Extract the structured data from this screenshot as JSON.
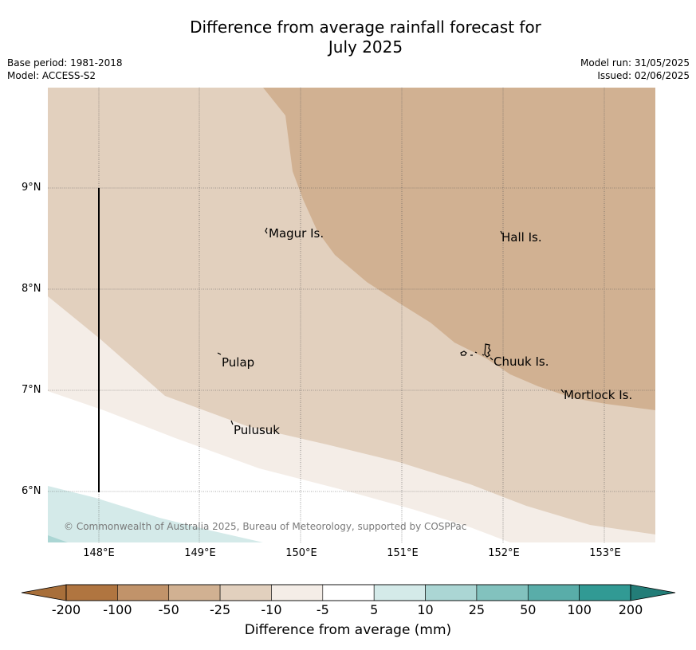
{
  "title_line1": "Difference from average rainfall forecast for",
  "title_line2": "July 2025",
  "base_period": "Base period: 1981-2018",
  "model": "Model: ACCESS-S2",
  "model_run": "Model run: 31/05/2025",
  "issued": "Issued: 02/06/2025",
  "lat_labels": [
    "9°N",
    "8°N",
    "7°N",
    "6°N"
  ],
  "lon_labels": [
    "148°E",
    "149°E",
    "150°E",
    "151°E",
    "152°E",
    "153°E"
  ],
  "places": {
    "magur": "Magur Is.",
    "hall": "Hall Is.",
    "pulap": "Pulap",
    "chuuk": "Chuuk Is.",
    "mortlock": "Mortlock Is.",
    "pulusuk": "Pulusuk"
  },
  "copyright": "© Commonwealth of Australia 2025, Bureau of Meteorology, supported by COSPPac",
  "colorbar": {
    "title": "Difference from average (mm)",
    "ticks": [
      "-200",
      "-100",
      "-50",
      "-25",
      "-10",
      "-5",
      "5",
      "10",
      "25",
      "50",
      "100",
      "200"
    ],
    "colors": [
      "#a86f3a",
      "#b07540",
      "#c1936a",
      "#d1b192",
      "#e2d0be",
      "#f4ede7",
      "#ffffff",
      "#d4eae9",
      "#abd6d4",
      "#82c2be",
      "#59ada9",
      "#319a94",
      "#237d78"
    ]
  }
}
